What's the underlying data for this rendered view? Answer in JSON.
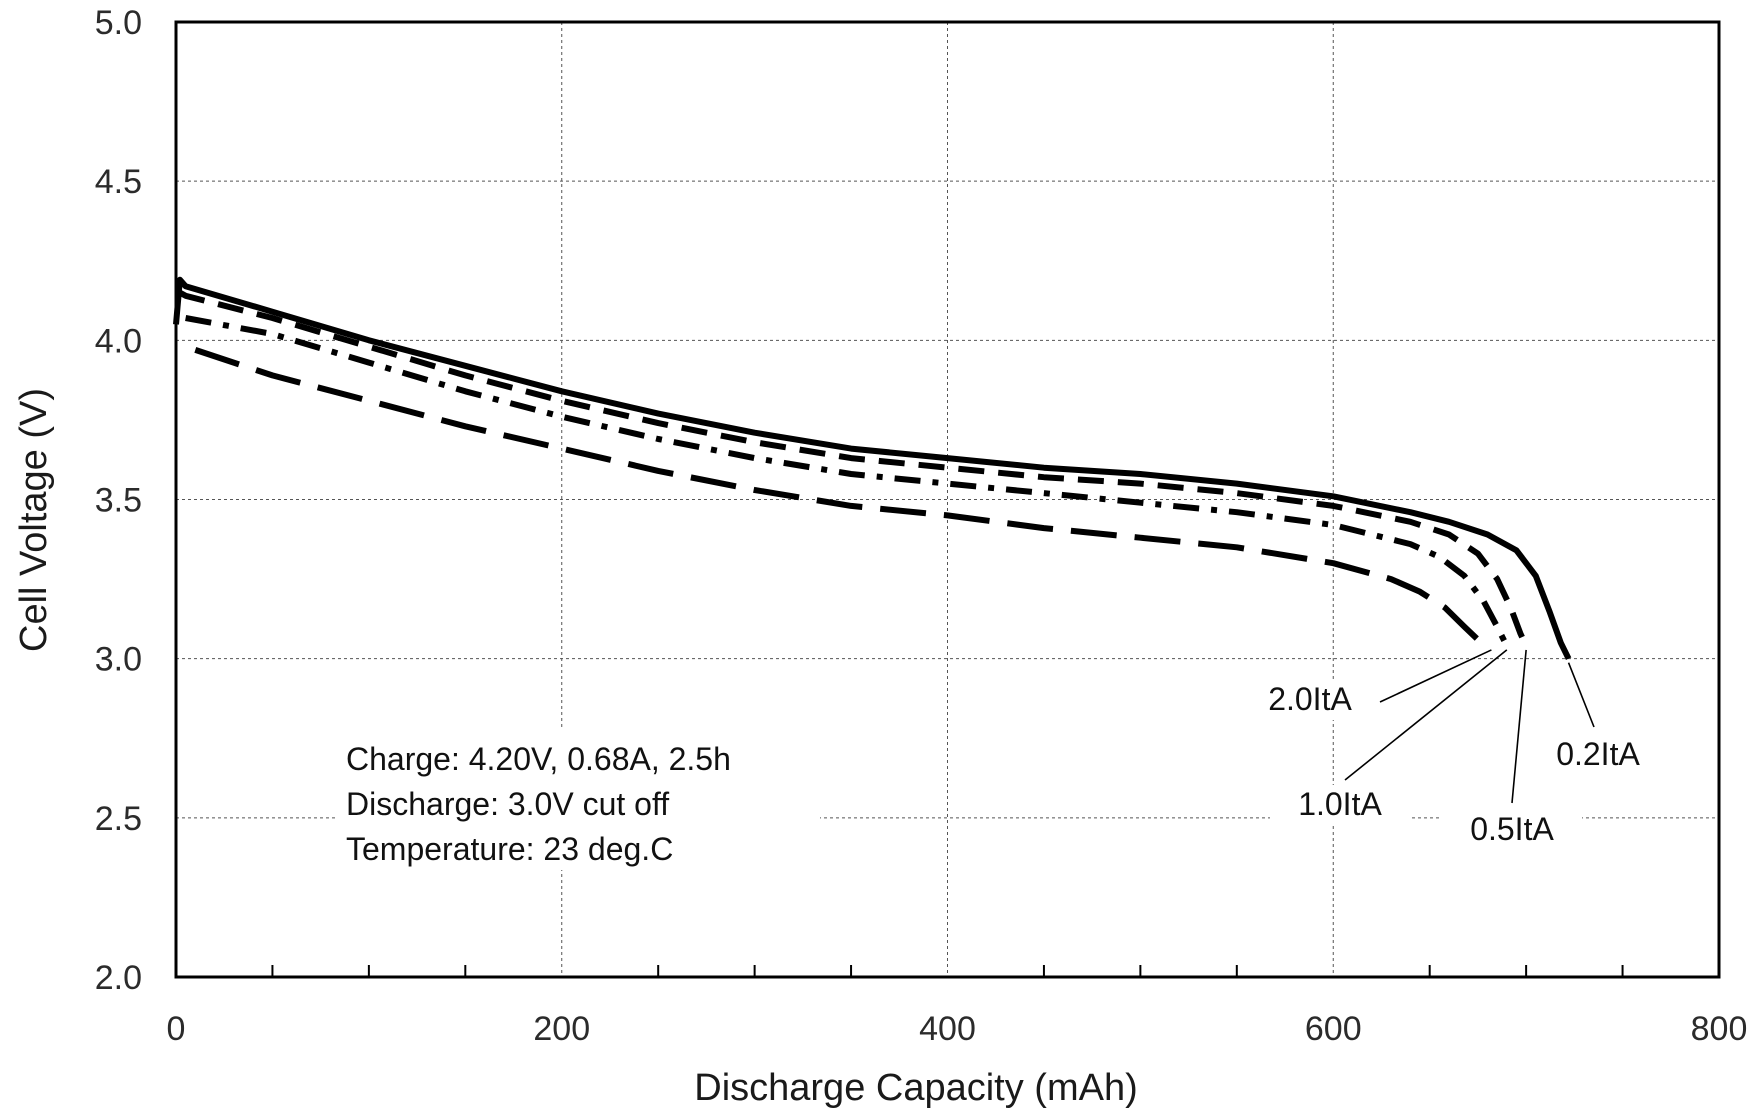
{
  "chart_data": {
    "type": "line",
    "title": "",
    "xlabel": "Discharge Capacity (mAh)",
    "ylabel": "Cell Voltage (V)",
    "xlim": [
      0,
      800
    ],
    "ylim": [
      2.0,
      5.0
    ],
    "x_ticks": [
      "0",
      "200",
      "400",
      "600",
      "800"
    ],
    "y_ticks": [
      "2.0",
      "2.5",
      "3.0",
      "3.5",
      "4.0",
      "4.5",
      "5.0"
    ],
    "grid": true,
    "notes": [
      "Charge: 4.20V, 0.68A, 2.5h",
      "Discharge: 3.0V cut off",
      "Temperature: 23 deg.C"
    ],
    "series": [
      {
        "name": "0.2ItA",
        "style": "solid",
        "color": "#000000",
        "x": [
          0,
          2,
          5,
          50,
          100,
          150,
          200,
          250,
          300,
          350,
          400,
          450,
          500,
          550,
          600,
          640,
          660,
          680,
          695,
          705,
          712,
          718,
          722
        ],
        "y": [
          4.05,
          4.19,
          4.17,
          4.09,
          4.0,
          3.92,
          3.84,
          3.77,
          3.71,
          3.66,
          3.63,
          3.6,
          3.58,
          3.55,
          3.51,
          3.46,
          3.43,
          3.39,
          3.34,
          3.26,
          3.15,
          3.05,
          3.0
        ]
      },
      {
        "name": "0.5ItA",
        "style": "dashed",
        "color": "#000000",
        "x": [
          2,
          5,
          50,
          100,
          150,
          200,
          250,
          300,
          350,
          400,
          450,
          500,
          550,
          600,
          640,
          660,
          675,
          685,
          692,
          697,
          700
        ],
        "y": [
          4.15,
          4.14,
          4.07,
          3.98,
          3.89,
          3.81,
          3.74,
          3.68,
          3.63,
          3.6,
          3.57,
          3.55,
          3.52,
          3.48,
          3.43,
          3.39,
          3.33,
          3.25,
          3.16,
          3.08,
          3.04
        ]
      },
      {
        "name": "1.0ItA",
        "style": "dash-dot",
        "color": "#000000",
        "x": [
          5,
          50,
          100,
          150,
          200,
          250,
          300,
          350,
          400,
          450,
          500,
          550,
          600,
          640,
          655,
          668,
          678,
          685,
          690
        ],
        "y": [
          4.07,
          4.02,
          3.93,
          3.84,
          3.76,
          3.69,
          3.63,
          3.58,
          3.55,
          3.52,
          3.49,
          3.46,
          3.42,
          3.36,
          3.32,
          3.26,
          3.18,
          3.1,
          3.04
        ]
      },
      {
        "name": "2.0ItA",
        "style": "long-dash",
        "color": "#000000",
        "x": [
          10,
          50,
          100,
          150,
          200,
          250,
          300,
          350,
          400,
          450,
          500,
          550,
          600,
          630,
          645,
          658,
          668,
          675,
          682
        ],
        "y": [
          3.97,
          3.89,
          3.81,
          3.73,
          3.66,
          3.59,
          3.53,
          3.48,
          3.45,
          3.41,
          3.38,
          3.35,
          3.3,
          3.25,
          3.21,
          3.16,
          3.1,
          3.06,
          3.04
        ]
      }
    ]
  }
}
